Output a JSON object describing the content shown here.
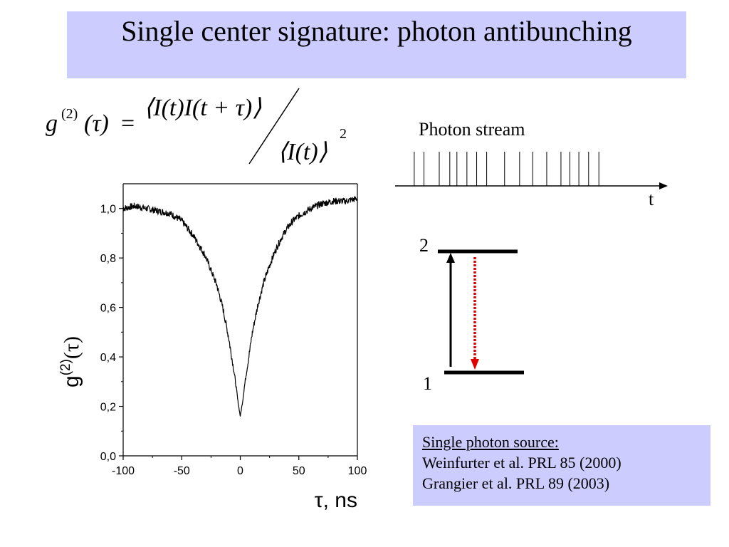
{
  "slide": {
    "title": "Single center signature: photon antibunching"
  },
  "formula": {
    "lhs_g": "g",
    "lhs_sup": "(2)",
    "lhs_arg": "(τ)",
    "equals": "=",
    "numerator": "⟨I(t)I(t + τ)⟩",
    "denominator": "⟨I(t)⟩",
    "denominator_power": "2"
  },
  "photon_stream": {
    "label": "Photon stream",
    "time_label": "t",
    "photon_times": [
      0.05,
      0.42,
      1.0,
      1.4,
      1.67,
      2.05,
      2.42,
      2.8,
      3.48,
      4.05,
      4.55,
      5.08,
      5.62,
      5.96,
      6.3,
      6.67,
      7.06
    ]
  },
  "energy_levels": {
    "upper_label": "2",
    "lower_label": "1",
    "excitation_color": "#000000",
    "emission_color": "#e00000"
  },
  "references": {
    "heading": "Single photon source:",
    "lines": [
      "Weinfurter et al. PRL 85 (2000)",
      "Grangier et al. PRL 89 (2003)"
    ]
  },
  "chart_data": {
    "type": "line",
    "title": "",
    "xlabel": "τ, ns",
    "ylabel_base": "g",
    "ylabel_sup": "(2)",
    "ylabel_arg": "(τ)",
    "xlim": [
      -100,
      100
    ],
    "ylim": [
      0,
      1.1
    ],
    "xticks": [
      -100,
      -50,
      0,
      50,
      100
    ],
    "xtick_labels": [
      "-100",
      "-50",
      "0",
      "50",
      "100"
    ],
    "yticks": [
      0,
      0.2,
      0.4,
      0.6,
      0.8,
      1.0
    ],
    "ytick_labels": [
      "0,0",
      "0,2",
      "0,4",
      "0,6",
      "0,8",
      "1,0"
    ],
    "grid": false,
    "series": [
      {
        "color": "#000000",
        "x": [
          -100,
          -90,
          -80,
          -70,
          -60,
          -50,
          -45,
          -40,
          -35,
          -30,
          -25,
          -20,
          -15,
          -10,
          -7,
          -5,
          -3,
          -2,
          -1,
          0,
          1,
          2,
          3,
          5,
          7,
          10,
          15,
          20,
          25,
          30,
          35,
          40,
          45,
          50,
          60,
          70,
          80,
          90,
          100
        ],
        "y": [
          1.0,
          1.01,
          1.0,
          0.99,
          0.98,
          0.95,
          0.92,
          0.89,
          0.85,
          0.81,
          0.75,
          0.69,
          0.6,
          0.48,
          0.39,
          0.33,
          0.26,
          0.22,
          0.19,
          0.16,
          0.19,
          0.22,
          0.26,
          0.33,
          0.39,
          0.49,
          0.61,
          0.7,
          0.77,
          0.83,
          0.88,
          0.92,
          0.95,
          0.97,
          1.0,
          1.02,
          1.03,
          1.03,
          1.04
        ]
      }
    ]
  }
}
